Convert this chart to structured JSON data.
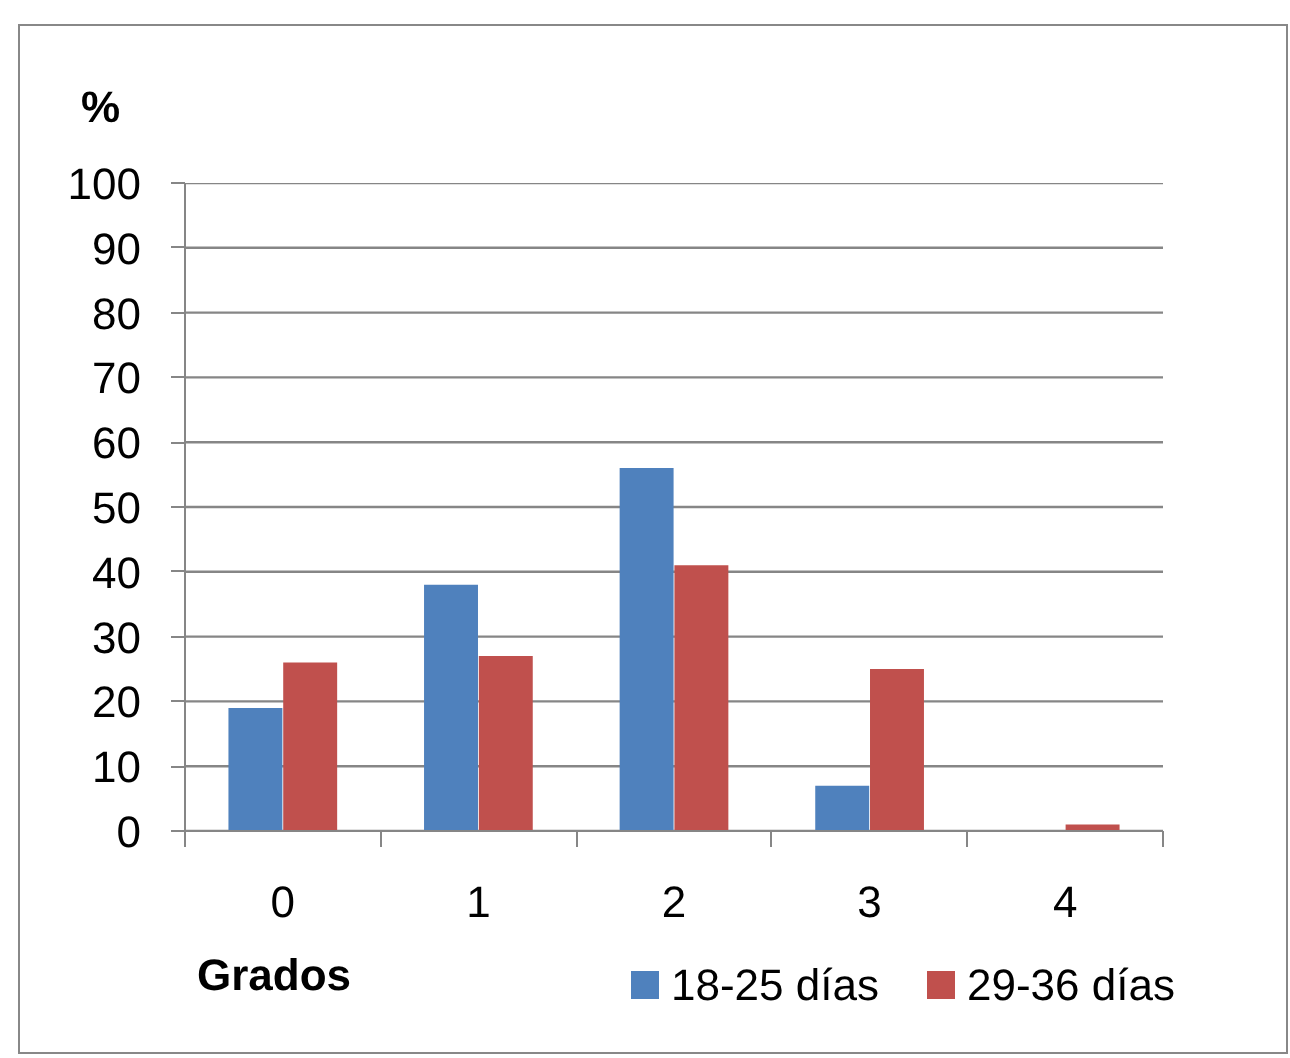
{
  "chart_data": {
    "type": "bar",
    "ylabel": "%",
    "xlabel": "Grados",
    "categories": [
      "0",
      "1",
      "2",
      "3",
      "4"
    ],
    "series": [
      {
        "name": "18-25 días",
        "color": "#4f81bd",
        "values": [
          19,
          38,
          56,
          7,
          0
        ]
      },
      {
        "name": "29-36 días",
        "color": "#c0504d",
        "values": [
          26,
          27,
          41,
          25,
          1
        ]
      }
    ],
    "ylim": [
      0,
      100
    ],
    "yticks": [
      0,
      10,
      20,
      30,
      40,
      50,
      60,
      70,
      80,
      90,
      100
    ],
    "grid": "y",
    "legend": "bottom right"
  }
}
